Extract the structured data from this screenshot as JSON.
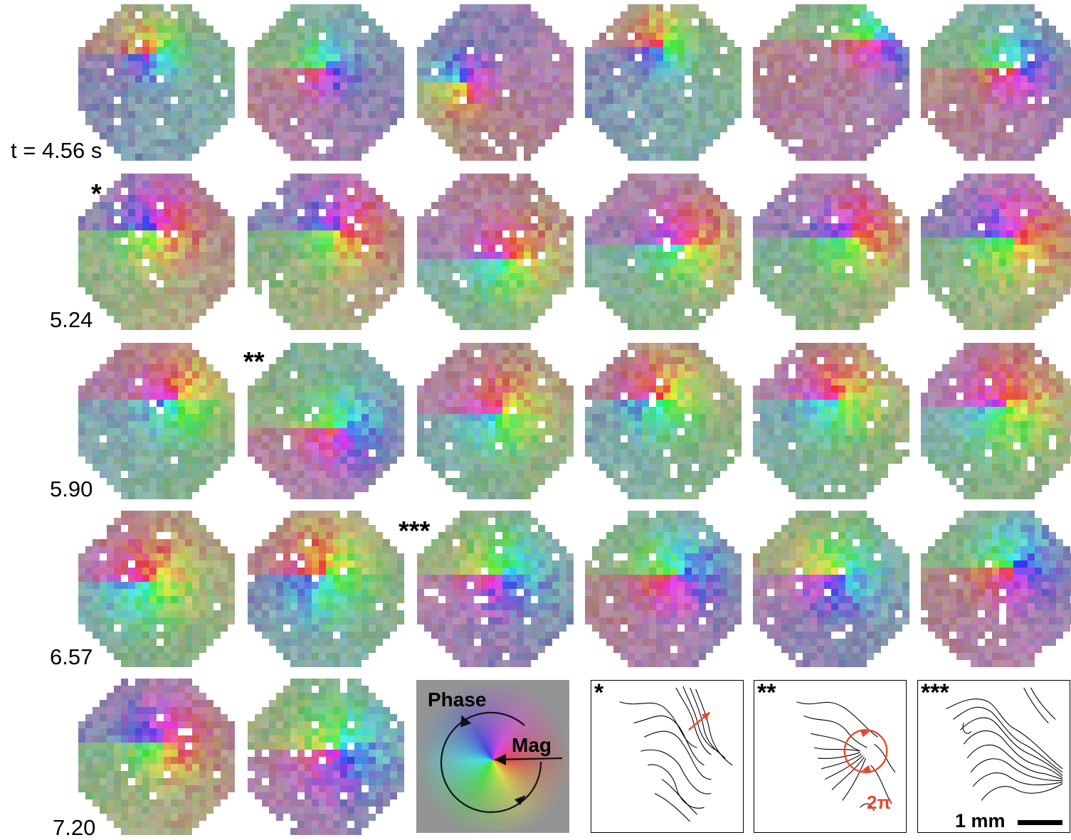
{
  "rows": [
    {
      "time_label": "t = 4.56 s",
      "stars": [
        "",
        "",
        "",
        "",
        "",
        ""
      ]
    },
    {
      "time_label": "5.24",
      "stars": [
        "*",
        "",
        "",
        "",
        "",
        ""
      ]
    },
    {
      "time_label": "5.90",
      "stars": [
        "",
        "**",
        "",
        "",
        "",
        ""
      ]
    },
    {
      "time_label": "6.57",
      "stars": [
        "",
        "",
        "***",
        "",
        "",
        ""
      ]
    },
    {
      "time_label": "7.20",
      "stars": [
        "",
        ""
      ]
    }
  ],
  "legend": {
    "phase_label": "Phase",
    "mag_label": "Mag"
  },
  "contours": [
    {
      "marker": "*",
      "annotation": ""
    },
    {
      "marker": "**",
      "annotation": "2π"
    },
    {
      "marker": "***",
      "annotation": ""
    }
  ],
  "scale_bar": {
    "label": "1 mm"
  },
  "colors": {
    "annotation_red": "#e8472e",
    "background_gray": "#8f8f8f"
  }
}
